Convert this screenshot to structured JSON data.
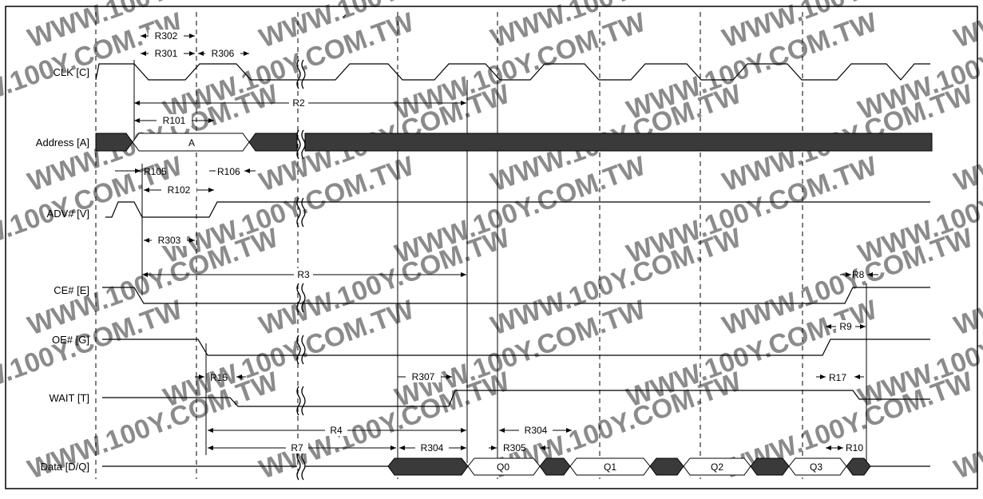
{
  "signals": [
    {
      "id": "clk",
      "label": "CLK [C]"
    },
    {
      "id": "addr",
      "label": "Address [A]"
    },
    {
      "id": "adv",
      "label": "ADV# [V]"
    },
    {
      "id": "ce",
      "label": "CE# [E]"
    },
    {
      "id": "oe",
      "label": "OE# [G]"
    },
    {
      "id": "wait",
      "label": "WAIT [T]"
    },
    {
      "id": "data",
      "label": "Data [D/Q]"
    }
  ],
  "bus_labels": {
    "address": "A",
    "q0": "Q0",
    "q1": "Q1",
    "q2": "Q2",
    "q3": "Q3"
  },
  "timing_labels": {
    "r302": "R302",
    "r301": "R301",
    "r306": "R306",
    "r2": "R2",
    "r101": "R101",
    "r105": "R105",
    "r106": "R106",
    "r102": "R102",
    "r303": "R303",
    "r3": "R3",
    "r8": "R8",
    "r9": "R9",
    "r15": "R15",
    "r307": "R307",
    "r17": "R17",
    "r4": "R4",
    "r304a": "R304",
    "r7": "R7",
    "r304b": "R304",
    "r305": "R305",
    "r10": "R10"
  },
  "watermark": "WWW.100Y.COM.TW",
  "colors": {
    "line": "#000000",
    "bus_fill": "#3a3a3a",
    "watermark": "#c8c8c8"
  }
}
